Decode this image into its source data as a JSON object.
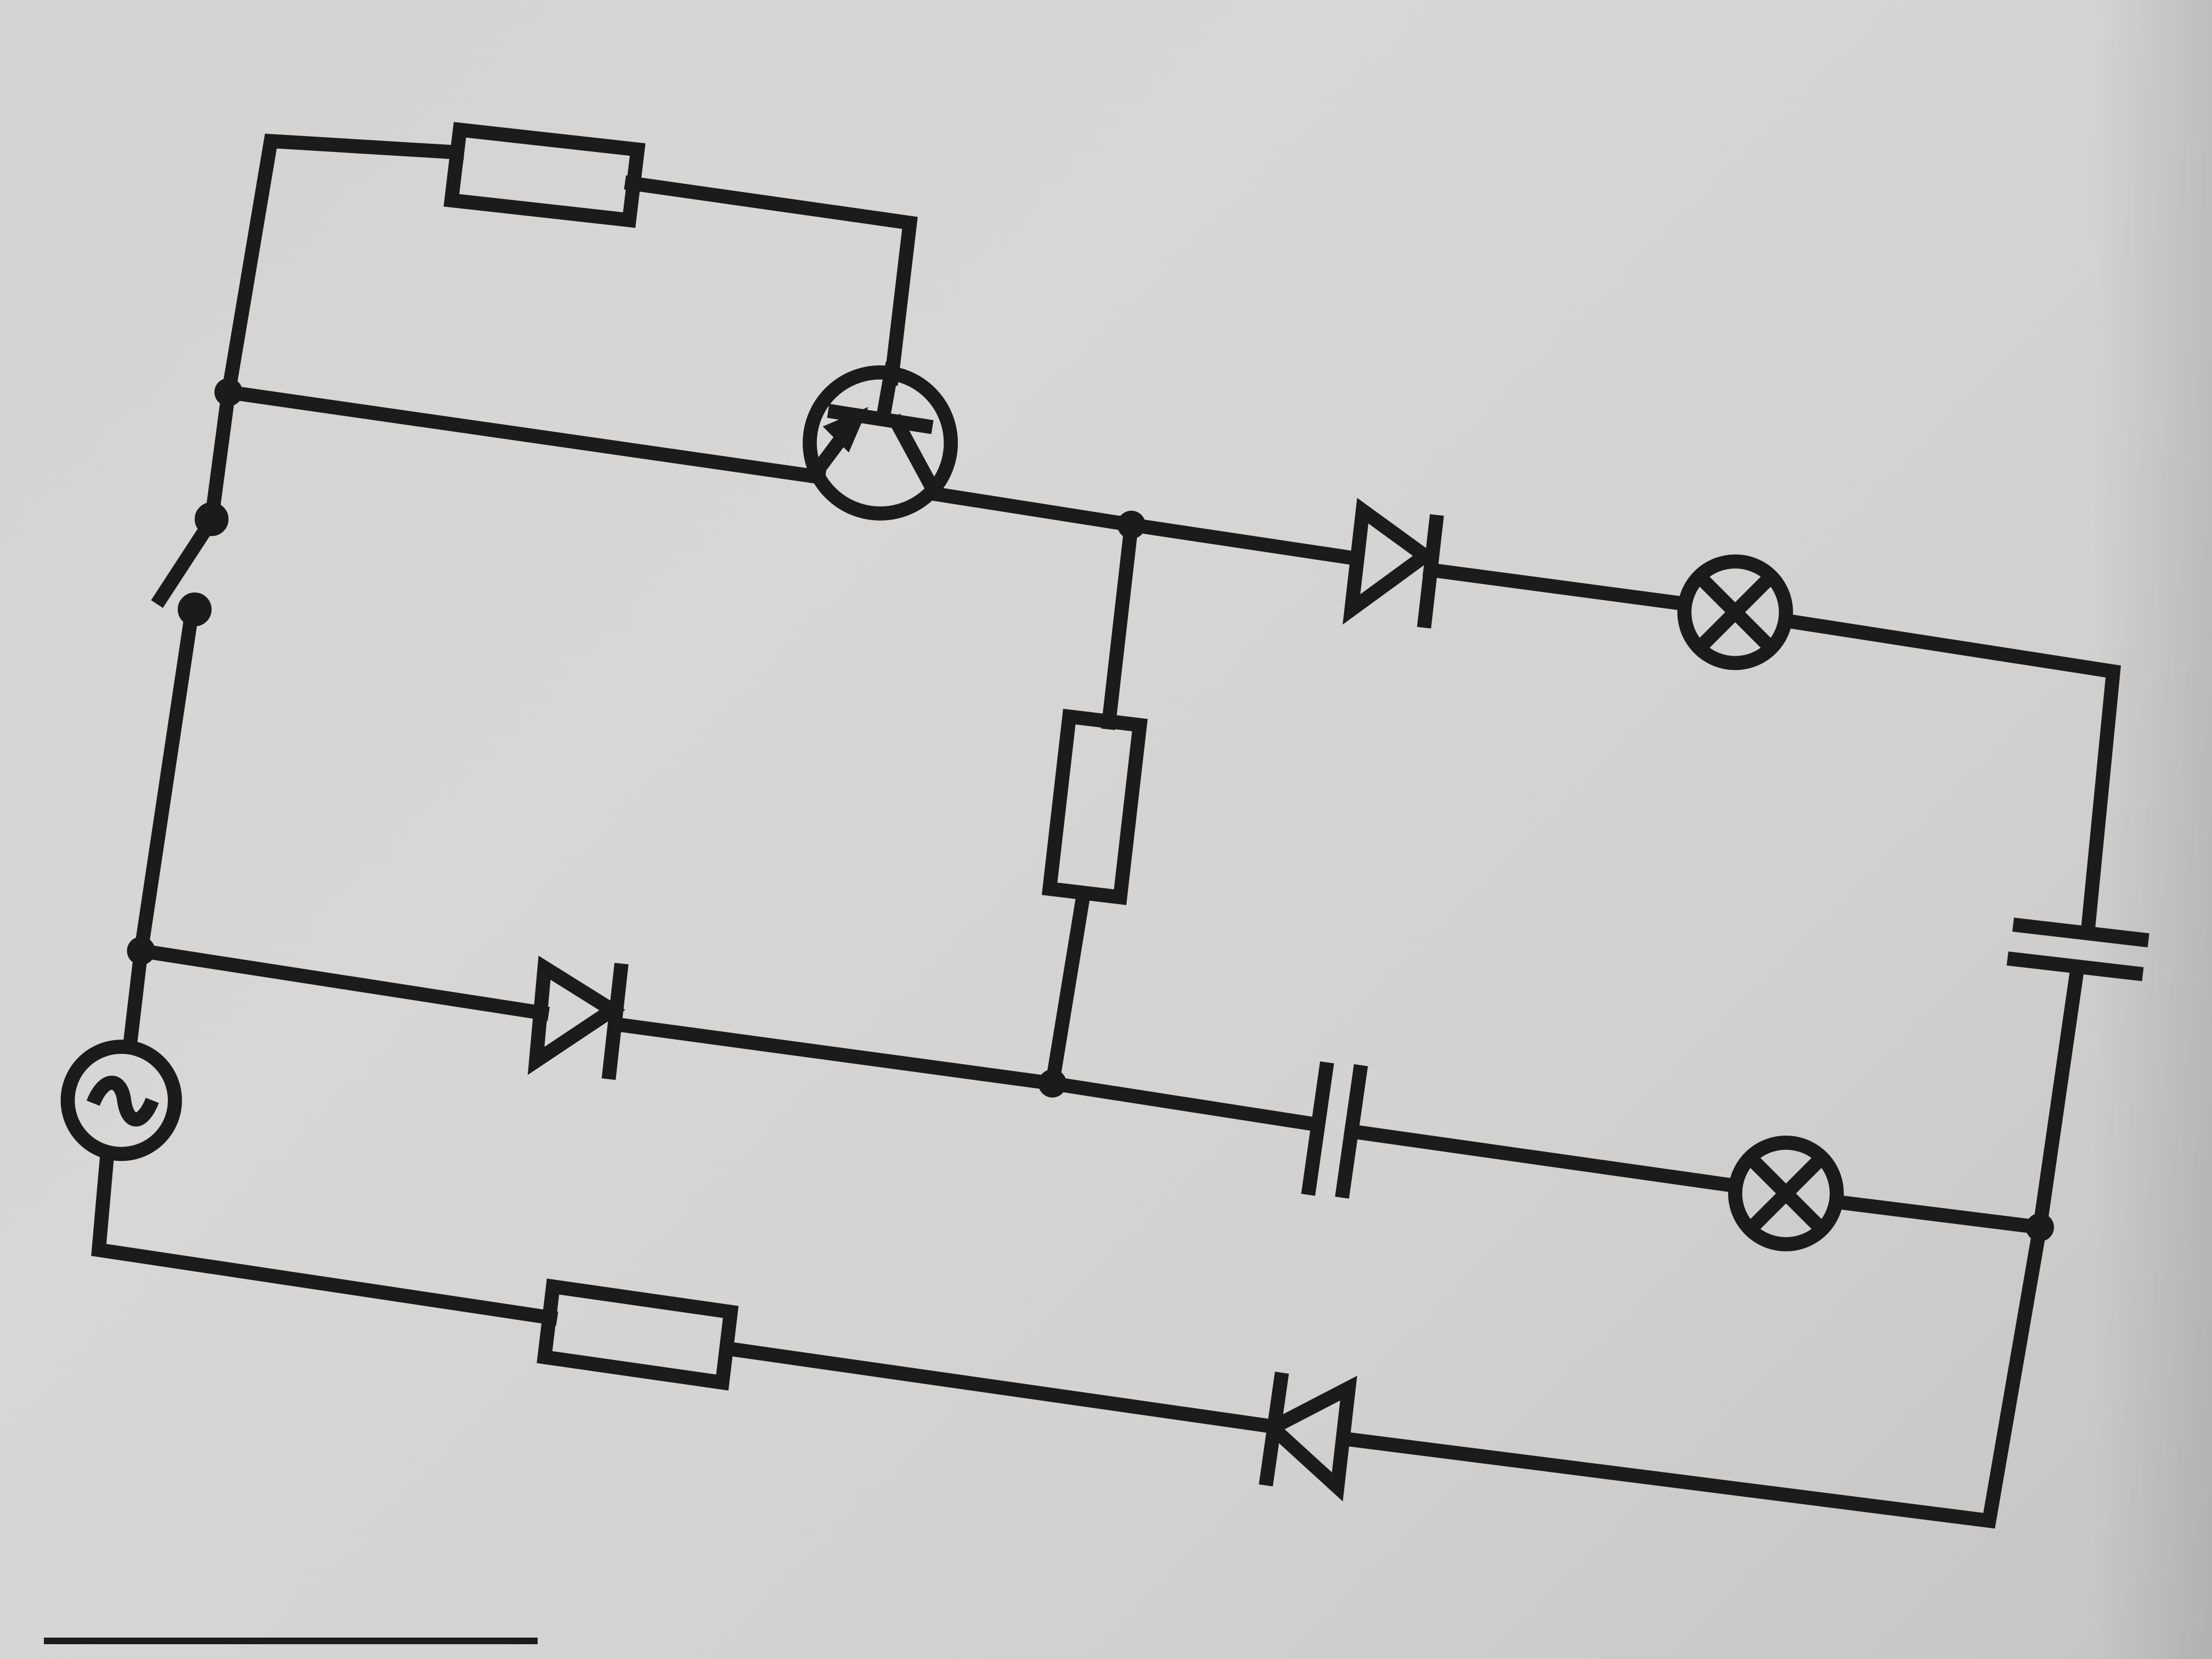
{
  "diagram": {
    "type": "circuit-schematic",
    "components": [
      {
        "kind": "ac-source",
        "symbol": "~"
      },
      {
        "kind": "switch",
        "state": "open"
      },
      {
        "kind": "transistor",
        "type": "pnp"
      },
      {
        "kind": "resistor",
        "position_name": "top"
      },
      {
        "kind": "resistor",
        "position_name": "middle-vertical"
      },
      {
        "kind": "resistor",
        "position_name": "bottom"
      },
      {
        "kind": "diode",
        "position_name": "upper-right"
      },
      {
        "kind": "diode",
        "position_name": "middle-left"
      },
      {
        "kind": "diode",
        "position_name": "bottom"
      },
      {
        "kind": "lamp",
        "position_name": "upper"
      },
      {
        "kind": "lamp",
        "position_name": "lower"
      },
      {
        "kind": "capacitor",
        "position_name": "right-vertical"
      },
      {
        "kind": "capacitor",
        "position_name": "middle-horizontal"
      }
    ],
    "colors": {
      "line": "#1b1b1b",
      "paper": "#d4d3d1"
    }
  }
}
